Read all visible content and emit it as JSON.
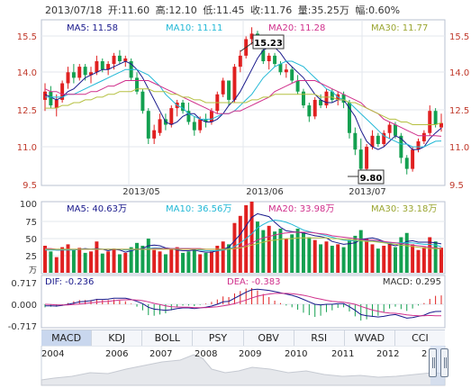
{
  "header": {
    "date": "2013/07/18",
    "open": "开:11.60",
    "high": "高:12.10",
    "low": "低:11.45",
    "close": "收:11.76",
    "volume": "量:35.25万",
    "change": "幅:0.60%"
  },
  "colors": {
    "up": "#e02020",
    "down": "#13a050",
    "ma5": "#1a1a8c",
    "ma10": "#22b8d6",
    "ma20": "#d0308c",
    "ma30": "#b5c040"
  },
  "price_panel": {
    "ma_labels": [
      "MA5: 11.58",
      "MA10: 11.11",
      "MA20: 11.28",
      "MA30: 11.77"
    ],
    "high_label": "15.23",
    "low_label": "9.80",
    "yticks": [
      "15.5",
      "14.0",
      "12.5",
      "11.0",
      "9.5"
    ],
    "xticks": [
      "2013/05",
      "2013/06",
      "2013/07"
    ]
  },
  "volume_panel": {
    "unit": "万",
    "ma_labels": [
      "MA5: 40.63万",
      "MA10: 36.56万",
      "MA20: 33.98万",
      "MA30: 33.18万"
    ],
    "yticks": [
      "100",
      "75",
      "50",
      "25"
    ]
  },
  "macd_panel": {
    "labels": [
      "DIF: -0.236",
      "DEA: -0.383",
      "MACD: 0.295"
    ],
    "yticks": [
      "0.717",
      "0.000",
      "-0.717"
    ]
  },
  "tabs": [
    "MACD",
    "KDJ",
    "BOLL",
    "PSY",
    "OBV",
    "RSI",
    "WVAD",
    "CCI"
  ],
  "timeline": {
    "years": [
      "2004",
      "2006",
      "2007",
      "2008",
      "2009",
      "2010",
      "2011",
      "2012",
      "2"
    ]
  },
  "chart_data": {
    "type": "candlestick",
    "title": "",
    "price_range": [
      9.5,
      15.5
    ],
    "volume_range": [
      0,
      100
    ],
    "volume_unit": "万",
    "macd_range": [
      -0.717,
      0.717
    ],
    "candles": [
      {
        "o": 12.6,
        "h": 13.2,
        "l": 12.2,
        "c": 12.9
      },
      {
        "o": 12.9,
        "h": 13.1,
        "l": 12.3,
        "c": 12.4
      },
      {
        "o": 12.3,
        "h": 12.8,
        "l": 12.0,
        "c": 12.6
      },
      {
        "o": 12.6,
        "h": 13.3,
        "l": 12.5,
        "c": 13.2
      },
      {
        "o": 13.2,
        "h": 13.8,
        "l": 13.0,
        "c": 13.6
      },
      {
        "o": 13.6,
        "h": 13.9,
        "l": 13.2,
        "c": 13.4
      },
      {
        "o": 13.4,
        "h": 13.9,
        "l": 13.3,
        "c": 13.8
      },
      {
        "o": 13.8,
        "h": 13.9,
        "l": 13.3,
        "c": 13.5
      },
      {
        "o": 13.5,
        "h": 13.8,
        "l": 13.2,
        "c": 13.6
      },
      {
        "o": 13.6,
        "h": 14.2,
        "l": 13.5,
        "c": 14.0
      },
      {
        "o": 14.0,
        "h": 14.1,
        "l": 13.6,
        "c": 13.7
      },
      {
        "o": 13.7,
        "h": 14.0,
        "l": 13.5,
        "c": 13.9
      },
      {
        "o": 13.9,
        "h": 14.3,
        "l": 13.7,
        "c": 14.2
      },
      {
        "o": 14.2,
        "h": 14.4,
        "l": 13.9,
        "c": 14.0
      },
      {
        "o": 14.0,
        "h": 14.2,
        "l": 13.8,
        "c": 14.1
      },
      {
        "o": 14.0,
        "h": 14.1,
        "l": 13.3,
        "c": 13.4
      },
      {
        "o": 13.4,
        "h": 13.6,
        "l": 12.8,
        "c": 12.9
      },
      {
        "o": 12.9,
        "h": 13.0,
        "l": 12.1,
        "c": 12.2
      },
      {
        "o": 12.2,
        "h": 12.3,
        "l": 11.0,
        "c": 11.2
      },
      {
        "o": 11.2,
        "h": 11.7,
        "l": 11.0,
        "c": 11.5
      },
      {
        "o": 11.4,
        "h": 12.1,
        "l": 11.3,
        "c": 11.9
      },
      {
        "o": 11.9,
        "h": 12.1,
        "l": 11.5,
        "c": 11.7
      },
      {
        "o": 11.7,
        "h": 12.4,
        "l": 11.6,
        "c": 12.3
      },
      {
        "o": 12.3,
        "h": 12.6,
        "l": 12.0,
        "c": 12.5
      },
      {
        "o": 12.5,
        "h": 12.6,
        "l": 12.1,
        "c": 12.2
      },
      {
        "o": 12.2,
        "h": 12.5,
        "l": 11.7,
        "c": 11.8
      },
      {
        "o": 11.8,
        "h": 12.0,
        "l": 11.3,
        "c": 11.5
      },
      {
        "o": 11.5,
        "h": 12.0,
        "l": 11.4,
        "c": 11.9
      },
      {
        "o": 11.9,
        "h": 12.1,
        "l": 11.6,
        "c": 11.8
      },
      {
        "o": 11.8,
        "h": 12.3,
        "l": 11.7,
        "c": 12.2
      },
      {
        "o": 12.2,
        "h": 12.9,
        "l": 12.1,
        "c": 12.8
      },
      {
        "o": 12.8,
        "h": 13.4,
        "l": 12.7,
        "c": 13.3
      },
      {
        "o": 13.3,
        "h": 13.3,
        "l": 12.4,
        "c": 12.6
      },
      {
        "o": 12.6,
        "h": 13.9,
        "l": 12.5,
        "c": 13.8
      },
      {
        "o": 13.8,
        "h": 14.4,
        "l": 13.6,
        "c": 14.2
      },
      {
        "o": 14.2,
        "h": 14.9,
        "l": 14.1,
        "c": 14.8
      },
      {
        "o": 14.8,
        "h": 15.23,
        "l": 14.6,
        "c": 15.0
      },
      {
        "o": 15.0,
        "h": 15.1,
        "l": 14.5,
        "c": 14.6
      },
      {
        "o": 14.4,
        "h": 14.5,
        "l": 13.9,
        "c": 14.0
      },
      {
        "o": 14.0,
        "h": 14.3,
        "l": 13.7,
        "c": 14.2
      },
      {
        "o": 14.2,
        "h": 14.3,
        "l": 13.8,
        "c": 13.9
      },
      {
        "o": 13.9,
        "h": 14.0,
        "l": 13.5,
        "c": 13.6
      },
      {
        "o": 13.6,
        "h": 13.9,
        "l": 13.4,
        "c": 13.7
      },
      {
        "o": 13.7,
        "h": 13.8,
        "l": 13.2,
        "c": 13.3
      },
      {
        "o": 13.3,
        "h": 13.5,
        "l": 12.8,
        "c": 12.9
      },
      {
        "o": 12.9,
        "h": 13.0,
        "l": 12.3,
        "c": 12.4
      },
      {
        "o": 12.4,
        "h": 12.5,
        "l": 11.8,
        "c": 12.0
      },
      {
        "o": 12.0,
        "h": 12.7,
        "l": 11.9,
        "c": 12.6
      },
      {
        "o": 12.6,
        "h": 12.8,
        "l": 12.3,
        "c": 12.4
      },
      {
        "o": 12.4,
        "h": 13.0,
        "l": 12.3,
        "c": 12.9
      },
      {
        "o": 12.9,
        "h": 13.0,
        "l": 12.5,
        "c": 12.6
      },
      {
        "o": 12.6,
        "h": 12.9,
        "l": 12.4,
        "c": 12.8
      },
      {
        "o": 12.8,
        "h": 12.9,
        "l": 12.3,
        "c": 12.5
      },
      {
        "o": 12.5,
        "h": 12.6,
        "l": 11.2,
        "c": 11.4
      },
      {
        "o": 11.4,
        "h": 11.6,
        "l": 10.6,
        "c": 10.8
      },
      {
        "o": 10.8,
        "h": 11.2,
        "l": 9.8,
        "c": 10.1
      },
      {
        "o": 10.1,
        "h": 11.0,
        "l": 10.0,
        "c": 10.9
      },
      {
        "o": 10.9,
        "h": 11.5,
        "l": 10.8,
        "c": 11.3
      },
      {
        "o": 11.3,
        "h": 11.4,
        "l": 10.9,
        "c": 11.0
      },
      {
        "o": 11.0,
        "h": 11.5,
        "l": 10.9,
        "c": 11.4
      },
      {
        "o": 11.4,
        "h": 11.8,
        "l": 11.2,
        "c": 11.7
      },
      {
        "o": 11.7,
        "h": 11.8,
        "l": 11.2,
        "c": 11.3
      },
      {
        "o": 11.3,
        "h": 11.4,
        "l": 10.3,
        "c": 10.5
      },
      {
        "o": 10.5,
        "h": 10.6,
        "l": 9.9,
        "c": 10.1
      },
      {
        "o": 10.1,
        "h": 10.9,
        "l": 10.0,
        "c": 10.8
      },
      {
        "o": 10.8,
        "h": 11.2,
        "l": 10.7,
        "c": 11.1
      },
      {
        "o": 11.1,
        "h": 11.5,
        "l": 11.0,
        "c": 11.4
      },
      {
        "o": 11.4,
        "h": 12.4,
        "l": 11.3,
        "c": 12.2
      },
      {
        "o": 12.2,
        "h": 12.3,
        "l": 11.6,
        "c": 11.7
      },
      {
        "o": 11.6,
        "h": 12.1,
        "l": 11.45,
        "c": 11.76
      }
    ],
    "volume": [
      38,
      30,
      22,
      36,
      40,
      32,
      35,
      28,
      30,
      44,
      27,
      30,
      34,
      26,
      28,
      36,
      42,
      38,
      48,
      32,
      30,
      26,
      34,
      36,
      28,
      30,
      32,
      26,
      28,
      30,
      38,
      44,
      40,
      70,
      80,
      95,
      100,
      72,
      60,
      66,
      58,
      62,
      48,
      54,
      62,
      56,
      50,
      46,
      40,
      44,
      38,
      40,
      36,
      46,
      52,
      60,
      48,
      40,
      34,
      38,
      42,
      36,
      50,
      56,
      40,
      32,
      36,
      50,
      44,
      35.25
    ],
    "series": [
      {
        "name": "MA5",
        "values": [
          12.8,
          12.7,
          12.6,
          12.7,
          12.9,
          13.0,
          13.2,
          13.4,
          13.5,
          13.6,
          13.7,
          13.7,
          13.8,
          13.9,
          14.0,
          13.9,
          13.7,
          13.4,
          13.0,
          12.6,
          12.2,
          11.8,
          11.7,
          11.8,
          12.0,
          12.1,
          12.1,
          11.9,
          11.8,
          11.8,
          11.9,
          12.1,
          12.4,
          12.6,
          12.9,
          13.3,
          13.7,
          14.1,
          14.4,
          14.5,
          14.5,
          14.3,
          14.0,
          13.8,
          13.6,
          13.4,
          13.1,
          12.8,
          12.6,
          12.5,
          12.5,
          12.6,
          12.6,
          12.3,
          12.0,
          11.5,
          11.1,
          10.9,
          10.8,
          10.9,
          11.1,
          11.3,
          11.2,
          11.0,
          10.8,
          10.8,
          10.9,
          11.2,
          11.4,
          11.58
        ]
      },
      {
        "name": "MA10",
        "values": [
          12.7,
          12.7,
          12.7,
          12.7,
          12.8,
          12.8,
          12.9,
          13.0,
          13.1,
          13.2,
          13.3,
          13.4,
          13.5,
          13.6,
          13.7,
          13.7,
          13.7,
          13.6,
          13.5,
          13.3,
          13.1,
          12.8,
          12.6,
          12.4,
          12.3,
          12.1,
          12.0,
          11.9,
          11.9,
          11.9,
          12.0,
          12.1,
          12.1,
          12.2,
          12.4,
          12.6,
          12.8,
          13.1,
          13.4,
          13.6,
          13.8,
          13.9,
          14.0,
          14.0,
          13.9,
          13.8,
          13.6,
          13.4,
          13.2,
          13.0,
          12.9,
          12.7,
          12.6,
          12.5,
          12.3,
          12.1,
          11.9,
          11.7,
          11.5,
          11.3,
          11.2,
          11.1,
          11.0,
          11.0,
          10.9,
          10.9,
          10.9,
          11.0,
          11.1,
          11.11
        ]
      },
      {
        "name": "MA20",
        "values": [
          13.0,
          12.9,
          12.9,
          12.8,
          12.8,
          12.8,
          12.8,
          12.8,
          12.9,
          12.9,
          13.0,
          13.1,
          13.1,
          13.2,
          13.3,
          13.3,
          13.3,
          13.3,
          13.3,
          13.2,
          13.1,
          13.0,
          12.9,
          12.8,
          12.7,
          12.6,
          12.5,
          12.4,
          12.3,
          12.2,
          12.1,
          12.1,
          12.1,
          12.2,
          12.2,
          12.3,
          12.4,
          12.5,
          12.6,
          12.7,
          12.9,
          13.0,
          13.1,
          13.2,
          13.3,
          13.3,
          13.3,
          13.3,
          13.2,
          13.1,
          13.0,
          12.9,
          12.8,
          12.7,
          12.6,
          12.5,
          12.3,
          12.2,
          12.1,
          11.9,
          11.8,
          11.7,
          11.6,
          11.5,
          11.4,
          11.3,
          11.3,
          11.3,
          11.3,
          11.28
        ]
      },
      {
        "name": "MA30",
        "values": [
          12.3,
          12.3,
          12.3,
          12.4,
          12.4,
          12.5,
          12.5,
          12.6,
          12.6,
          12.7,
          12.7,
          12.8,
          12.8,
          12.9,
          12.9,
          12.9,
          13.0,
          13.0,
          13.0,
          12.9,
          12.9,
          12.9,
          12.8,
          12.8,
          12.7,
          12.7,
          12.6,
          12.6,
          12.5,
          12.5,
          12.5,
          12.5,
          12.5,
          12.5,
          12.5,
          12.5,
          12.6,
          12.6,
          12.7,
          12.7,
          12.8,
          12.8,
          12.8,
          12.8,
          12.8,
          12.8,
          12.8,
          12.8,
          12.7,
          12.7,
          12.7,
          12.6,
          12.6,
          12.5,
          12.5,
          12.4,
          12.3,
          12.2,
          12.1,
          12.0,
          11.9,
          11.9,
          11.8,
          11.8,
          11.7,
          11.7,
          11.7,
          11.7,
          11.7,
          11.77
        ]
      }
    ],
    "volume_ma": [
      {
        "name": "MA5",
        "values": [
          33,
          33,
          32,
          32,
          33,
          32,
          33,
          34,
          33,
          34,
          33,
          31,
          33,
          32,
          29,
          31,
          33,
          34,
          38,
          39,
          38,
          35,
          34,
          32,
          31,
          31,
          32,
          30,
          29,
          29,
          31,
          33,
          36,
          45,
          54,
          66,
          78,
          83,
          81,
          79,
          71,
          64,
          59,
          58,
          57,
          56,
          54,
          52,
          51,
          49,
          44,
          42,
          40,
          41,
          42,
          47,
          48,
          49,
          47,
          44,
          40,
          38,
          40,
          44,
          45,
          43,
          43,
          43,
          42,
          40.63
        ]
      },
      {
        "name": "MA10",
        "values": [
          32,
          32,
          32,
          32,
          32,
          32,
          33,
          33,
          33,
          33,
          33,
          33,
          33,
          33,
          32,
          32,
          33,
          33,
          34,
          35,
          35,
          34,
          34,
          34,
          34,
          34,
          33,
          32,
          31,
          31,
          31,
          32,
          33,
          37,
          42,
          48,
          55,
          63,
          68,
          72,
          74,
          73,
          71,
          68,
          64,
          60,
          58,
          56,
          54,
          52,
          50,
          48,
          46,
          45,
          45,
          45,
          45,
          45,
          44,
          43,
          42,
          42,
          42,
          42,
          42,
          41,
          40,
          40,
          39,
          36.56
        ]
      },
      {
        "name": "MA20",
        "values": [
          34,
          34,
          33,
          33,
          33,
          33,
          33,
          33,
          33,
          33,
          33,
          33,
          33,
          33,
          33,
          33,
          33,
          33,
          33,
          34,
          34,
          34,
          34,
          34,
          34,
          34,
          34,
          34,
          33,
          33,
          33,
          33,
          33,
          34,
          36,
          39,
          42,
          46,
          49,
          51,
          53,
          55,
          56,
          57,
          57,
          57,
          57,
          56,
          55,
          54,
          52,
          51,
          50,
          49,
          48,
          47,
          46,
          46,
          45,
          44,
          43,
          42,
          41,
          40,
          39,
          38,
          37,
          36,
          35,
          33.98
        ]
      },
      {
        "name": "MA30",
        "values": [
          33,
          33,
          33,
          33,
          33,
          33,
          33,
          33,
          33,
          33,
          33,
          33,
          33,
          33,
          33,
          33,
          33,
          33,
          33,
          33,
          33,
          33,
          33,
          33,
          33,
          33,
          33,
          33,
          33,
          33,
          33,
          33,
          33,
          34,
          35,
          37,
          39,
          41,
          43,
          45,
          46,
          47,
          48,
          48,
          49,
          49,
          49,
          49,
          49,
          49,
          48,
          48,
          47,
          47,
          46,
          45,
          44,
          44,
          43,
          42,
          41,
          40,
          39,
          38,
          37,
          36,
          35,
          34,
          34,
          33.18
        ]
      }
    ],
    "macd": {
      "dif": [
        -0.05,
        -0.05,
        -0.06,
        -0.04,
        0.0,
        0.04,
        0.08,
        0.1,
        0.12,
        0.16,
        0.16,
        0.17,
        0.2,
        0.2,
        0.2,
        0.16,
        0.1,
        0.02,
        -0.1,
        -0.16,
        -0.18,
        -0.2,
        -0.18,
        -0.14,
        -0.12,
        -0.12,
        -0.14,
        -0.12,
        -0.1,
        -0.06,
        0.0,
        0.08,
        0.1,
        0.2,
        0.3,
        0.4,
        0.48,
        0.5,
        0.48,
        0.46,
        0.42,
        0.38,
        0.34,
        0.3,
        0.24,
        0.16,
        0.08,
        0.0,
        -0.02,
        0.0,
        0.0,
        0.02,
        0.02,
        -0.08,
        -0.2,
        -0.34,
        -0.38,
        -0.4,
        -0.42,
        -0.4,
        -0.36,
        -0.34,
        -0.4,
        -0.46,
        -0.44,
        -0.4,
        -0.36,
        -0.28,
        -0.24,
        -0.236
      ],
      "dea": [
        0.0,
        -0.01,
        -0.02,
        -0.02,
        -0.02,
        -0.01,
        0.01,
        0.03,
        0.05,
        0.07,
        0.09,
        0.1,
        0.12,
        0.14,
        0.15,
        0.15,
        0.14,
        0.12,
        0.08,
        0.03,
        -0.01,
        -0.05,
        -0.08,
        -0.09,
        -0.1,
        -0.1,
        -0.11,
        -0.11,
        -0.11,
        -0.1,
        -0.08,
        -0.05,
        -0.02,
        0.02,
        0.08,
        0.14,
        0.21,
        0.27,
        0.31,
        0.34,
        0.36,
        0.36,
        0.36,
        0.35,
        0.33,
        0.3,
        0.26,
        0.21,
        0.17,
        0.13,
        0.1,
        0.08,
        0.07,
        0.04,
        0.0,
        -0.07,
        -0.13,
        -0.19,
        -0.23,
        -0.27,
        -0.29,
        -0.3,
        -0.32,
        -0.35,
        -0.37,
        -0.38,
        -0.38,
        -0.37,
        -0.38,
        -0.383
      ]
    }
  }
}
